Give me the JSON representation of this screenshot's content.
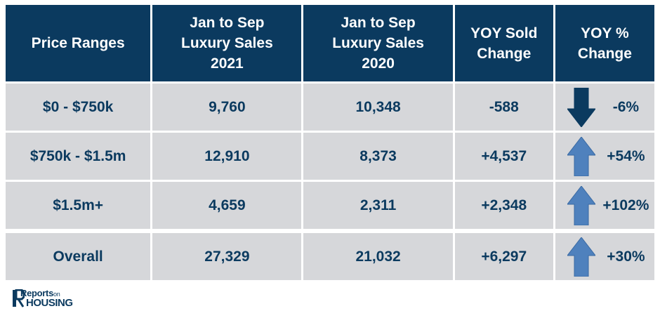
{
  "header": {
    "price_ranges": "Price Ranges",
    "sales_2021": [
      "Jan to Sep",
      "Luxury Sales",
      "2021"
    ],
    "sales_2020": [
      "Jan to Sep",
      "Luxury Sales",
      "2020"
    ],
    "yoy_sold": [
      "YOY Sold",
      "Change"
    ],
    "yoy_pct": [
      "YOY %",
      "Change"
    ]
  },
  "rows": [
    {
      "range": "$0 - $750k",
      "sales_2021": "9,760",
      "sales_2020": "10,348",
      "yoy_sold": "-588",
      "yoy_pct": "-6%",
      "direction": "down"
    },
    {
      "range": "$750k - $1.5m",
      "sales_2021": "12,910",
      "sales_2020": "8,373",
      "yoy_sold": "+4,537",
      "yoy_pct": "+54%",
      "direction": "up"
    },
    {
      "range": "$1.5m+",
      "sales_2021": "4,659",
      "sales_2020": "2,311",
      "yoy_sold": "+2,348",
      "yoy_pct": "+102%",
      "direction": "up"
    }
  ],
  "overall": {
    "range": "Overall",
    "sales_2021": "27,329",
    "sales_2020": "21,032",
    "yoy_sold": "+6,297",
    "yoy_pct": "+30%",
    "direction": "up"
  },
  "logo": {
    "line1": "Reports",
    "line1_small": "on",
    "line2": "HOUSING"
  },
  "colors": {
    "header_bg": "#0b3a5f",
    "cell_bg": "#d6d7da",
    "text": "#0b3a5f",
    "arrow_up": "#4f81bd",
    "arrow_down": "#0b3a5f"
  }
}
